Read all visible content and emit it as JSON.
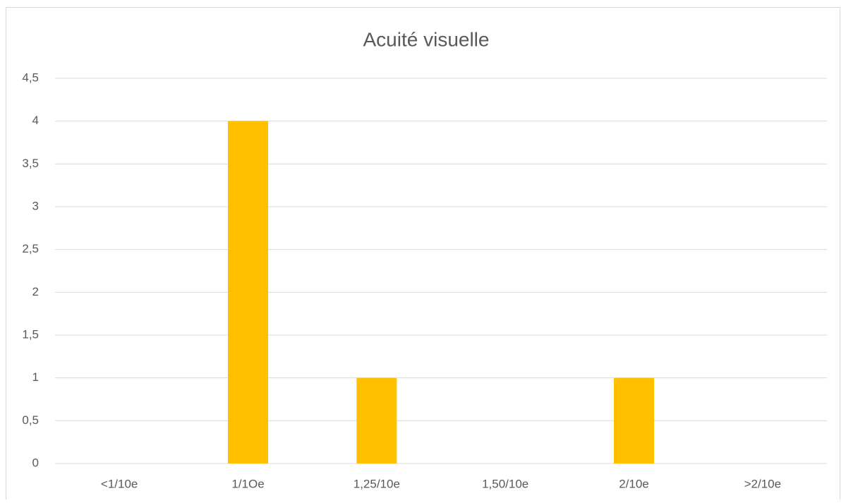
{
  "chart_data": {
    "type": "bar",
    "title": "Acuité visuelle",
    "categories": [
      "<1/10e",
      "1/1Oe",
      "1,25/10e",
      "1,50/10e",
      "2/10e",
      ">2/10e"
    ],
    "values": [
      0,
      4,
      1,
      0,
      1,
      0
    ],
    "color": "#ffc000",
    "ylim": [
      0,
      4.5
    ],
    "yticks": [
      0,
      {
        "value": 0.5,
        "label": "0,5"
      },
      1,
      {
        "value": 1.5,
        "label": "1,5"
      },
      2,
      {
        "value": 2.5,
        "label": "2,5"
      },
      3,
      {
        "value": 3.5,
        "label": "3,5"
      },
      4,
      {
        "value": 4.5,
        "label": "4,5"
      }
    ],
    "grid": true
  }
}
